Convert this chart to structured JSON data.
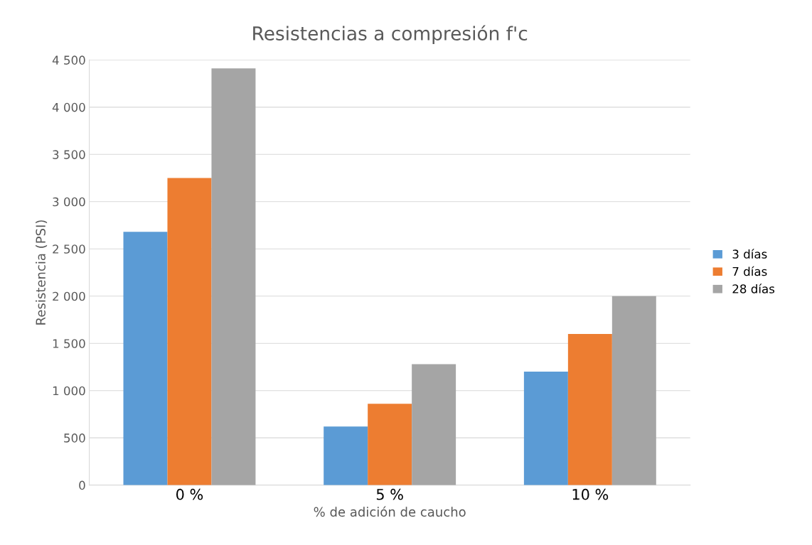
{
  "chart_data": {
    "type": "bar",
    "title": "Resistencias a compresión f'c",
    "xlabel": "% de adición de caucho",
    "ylabel": "Resistencia (PSI)",
    "categories": [
      "0 %",
      "5 %",
      "10 %"
    ],
    "series": [
      {
        "name": "3 días",
        "color": "#5b9bd5",
        "values": [
          2680,
          620,
          1200
        ]
      },
      {
        "name": "7 días",
        "color": "#ed7d31",
        "values": [
          3250,
          860,
          1600
        ]
      },
      {
        "name": "28 días",
        "color": "#a5a5a5",
        "values": [
          4410,
          1280,
          2000
        ]
      }
    ],
    "ylim": [
      0,
      4500
    ],
    "yticks": [
      0,
      500,
      {
        "value": 1000,
        "label": "1 000"
      },
      {
        "value": 1500,
        "label": "1 500"
      },
      {
        "value": 2000,
        "label": "2 000"
      },
      {
        "value": 2500,
        "label": "2 500"
      },
      {
        "value": 3000,
        "label": "3 000"
      },
      {
        "value": 3500,
        "label": "3 500"
      },
      {
        "value": 4000,
        "label": "4 000"
      },
      {
        "value": 4500,
        "label": "4 500"
      }
    ],
    "grid": "y",
    "legend": "right"
  }
}
